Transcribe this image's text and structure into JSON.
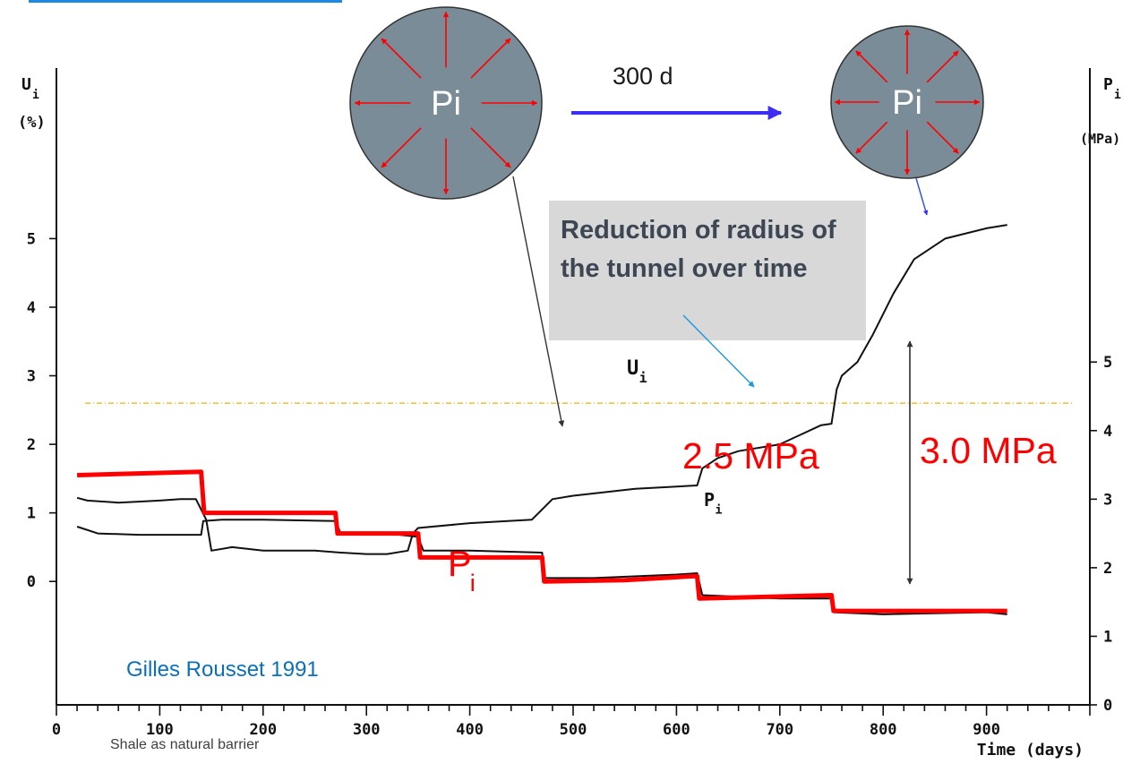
{
  "chart_data": {
    "type": "line",
    "x": {
      "label": "Time (days)",
      "range": [
        0,
        1000
      ],
      "ticks": [
        "0",
        "100",
        "200",
        "300",
        "400",
        "500",
        "600",
        "700",
        "800",
        "900"
      ]
    },
    "y_left": {
      "symbol": "U",
      "subscript": "i",
      "unit": "(%)",
      "range": [
        -1.8,
        7.2
      ],
      "ticks": [
        "0",
        "1",
        "2",
        "3",
        "4",
        "5"
      ]
    },
    "y_right": {
      "symbol": "P",
      "subscript": "i",
      "unit": "(MPa)",
      "range": [
        0,
        9
      ],
      "ticks": [
        "0",
        "1",
        "2",
        "3",
        "4",
        "5"
      ]
    },
    "series": [
      {
        "axis": "left",
        "color": "#111111",
        "curve_label": "U",
        "curve_label_sub": "i",
        "points": [
          [
            20,
            1.22
          ],
          [
            30,
            1.18
          ],
          [
            60,
            1.15
          ],
          [
            100,
            1.18
          ],
          [
            120,
            1.2
          ],
          [
            135,
            1.2
          ],
          [
            145,
            0.9
          ],
          [
            150,
            0.45
          ],
          [
            170,
            0.5
          ],
          [
            200,
            0.45
          ],
          [
            250,
            0.45
          ],
          [
            275,
            0.42
          ],
          [
            300,
            0.4
          ],
          [
            320,
            0.4
          ],
          [
            340,
            0.45
          ],
          [
            345,
            0.7
          ],
          [
            350,
            0.78
          ],
          [
            400,
            0.85
          ],
          [
            460,
            0.9
          ],
          [
            470,
            1.05
          ],
          [
            480,
            1.2
          ],
          [
            500,
            1.25
          ],
          [
            560,
            1.35
          ],
          [
            620,
            1.4
          ],
          [
            625,
            1.65
          ],
          [
            640,
            1.8
          ],
          [
            660,
            1.9
          ],
          [
            700,
            2.0
          ],
          [
            740,
            2.28
          ],
          [
            750,
            2.3
          ],
          [
            755,
            2.8
          ],
          [
            760,
            3.0
          ],
          [
            775,
            3.2
          ],
          [
            790,
            3.6
          ],
          [
            810,
            4.2
          ],
          [
            830,
            4.7
          ],
          [
            860,
            5.0
          ],
          [
            900,
            5.15
          ],
          [
            920,
            5.2
          ]
        ]
      },
      {
        "axis": "right",
        "color": "#111111",
        "curve_label": "P",
        "curve_label_sub": "i",
        "points": [
          [
            20,
            2.6
          ],
          [
            40,
            2.5
          ],
          [
            80,
            2.48
          ],
          [
            140,
            2.48
          ],
          [
            142,
            2.68
          ],
          [
            160,
            2.7
          ],
          [
            200,
            2.7
          ],
          [
            270,
            2.68
          ],
          [
            275,
            2.5
          ],
          [
            320,
            2.5
          ],
          [
            350,
            2.45
          ],
          [
            355,
            2.25
          ],
          [
            400,
            2.25
          ],
          [
            470,
            2.22
          ],
          [
            472,
            1.85
          ],
          [
            520,
            1.85
          ],
          [
            600,
            1.9
          ],
          [
            620,
            1.92
          ],
          [
            625,
            1.6
          ],
          [
            700,
            1.55
          ],
          [
            750,
            1.55
          ],
          [
            752,
            1.35
          ],
          [
            800,
            1.32
          ],
          [
            900,
            1.35
          ],
          [
            920,
            1.32
          ]
        ]
      },
      {
        "axis": "right",
        "color": "#ff0000",
        "curve_label": "P",
        "curve_label_sub": "i",
        "points": [
          [
            20,
            3.35
          ],
          [
            140,
            3.4
          ],
          [
            143,
            2.8
          ],
          [
            270,
            2.8
          ],
          [
            272,
            2.5
          ],
          [
            350,
            2.5
          ],
          [
            352,
            2.15
          ],
          [
            470,
            2.15
          ],
          [
            472,
            1.8
          ],
          [
            550,
            1.82
          ],
          [
            620,
            1.88
          ],
          [
            622,
            1.55
          ],
          [
            750,
            1.6
          ],
          [
            752,
            1.37
          ],
          [
            920,
            1.37
          ]
        ]
      }
    ],
    "annotations": [
      {
        "text": "2.5 MPa"
      },
      {
        "text": "3.0 MPa"
      }
    ],
    "reference_line_y_percent": 2.6
  },
  "diagram": {
    "circle_label": "Pi",
    "duration_label": "300 d",
    "callout_text": "Reduction of radius of the tunnel over time",
    "credit": "Gilles Rousset 1991",
    "footer": "Shale as natural barrier"
  },
  "colors": {
    "circle_fill": "#7a8c97",
    "arrow_red": "#ff0000",
    "arrow_blue": "#3c2ef2",
    "callout_bg": "#d8d8d8",
    "callout_text": "#3c4753",
    "credit": "#0b6fba",
    "reference_line": "#f0b000",
    "pointer_blue": "#1e96e0"
  }
}
